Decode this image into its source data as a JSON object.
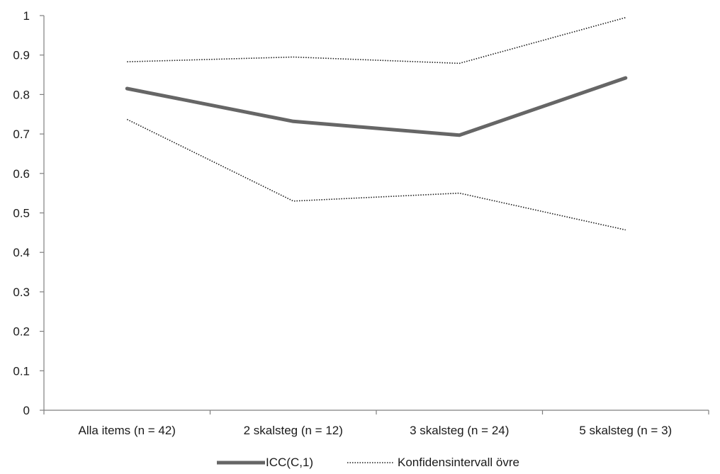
{
  "chart_data": {
    "type": "line",
    "categories": [
      "Alla items (n = 42)",
      "2 skalsteg (n = 12)",
      "3 skalsteg (n = 24)",
      "5 skalsteg (n = 3)"
    ],
    "ylim": [
      0,
      1
    ],
    "yticks": [
      "0",
      "0.1",
      "0.2",
      "0.3",
      "0.4",
      "0.5",
      "0.6",
      "0.7",
      "0.8",
      "0.9",
      "1"
    ],
    "grid": false,
    "legend_position": "bottom",
    "series": [
      {
        "name": "ICC(C,1)",
        "values": [
          0.815,
          0.732,
          0.697,
          0.842
        ],
        "color": "#666666",
        "style": "solid"
      },
      {
        "name": "Konfidensintervall övre",
        "values": [
          0.883,
          0.895,
          0.879,
          0.995
        ],
        "color": "#1a1a1a",
        "style": "dotted"
      },
      {
        "name": "",
        "values": [
          0.737,
          0.53,
          0.55,
          0.457
        ],
        "color": "#1a1a1a",
        "style": "dotted"
      }
    ]
  }
}
